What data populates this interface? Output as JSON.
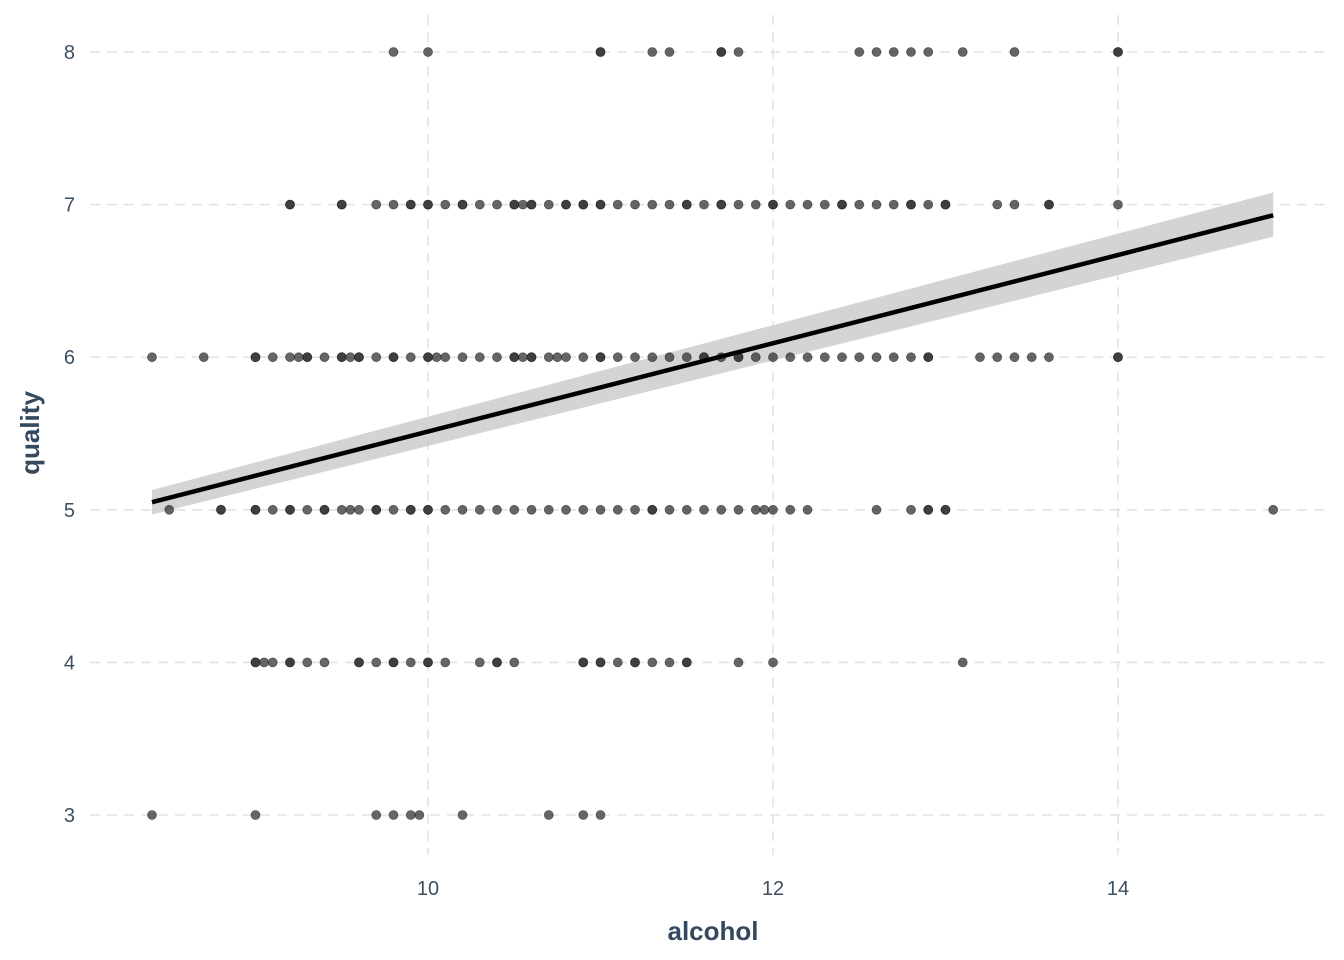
{
  "chart_data": {
    "type": "scatter",
    "title": "",
    "xlabel": "alcohol",
    "ylabel": "quality",
    "xlim": [
      8.2,
      15.3
    ],
    "ylim": [
      2.7,
      8.3
    ],
    "xticks": [
      10,
      12,
      14
    ],
    "yticks": [
      3,
      4,
      5,
      6,
      7,
      8
    ],
    "xtick_labels": [
      "10",
      "12",
      "14"
    ],
    "ytick_labels": [
      "3",
      "4",
      "5",
      "6",
      "7",
      "8"
    ],
    "grid": true,
    "legend": "none",
    "colors": {
      "points": "#333333",
      "trend_line": "#000000",
      "confidence_band": "#cccccc"
    },
    "series": [
      {
        "type": "scatter",
        "points": [
          [
            9.8,
            8
          ],
          [
            10.0,
            8
          ],
          [
            11.0,
            8
          ],
          [
            11.0,
            8
          ],
          [
            11.3,
            8
          ],
          [
            11.4,
            8
          ],
          [
            11.7,
            8
          ],
          [
            11.7,
            8
          ],
          [
            11.8,
            8
          ],
          [
            12.5,
            8
          ],
          [
            12.6,
            8
          ],
          [
            12.7,
            8
          ],
          [
            12.8,
            8
          ],
          [
            12.9,
            8
          ],
          [
            13.1,
            8
          ],
          [
            13.4,
            8
          ],
          [
            14.0,
            8
          ],
          [
            14.0,
            8
          ],
          [
            9.2,
            7
          ],
          [
            9.2,
            7
          ],
          [
            9.5,
            7
          ],
          [
            9.5,
            7
          ],
          [
            9.7,
            7
          ],
          [
            9.8,
            7
          ],
          [
            9.9,
            7
          ],
          [
            9.9,
            7
          ],
          [
            10.0,
            7
          ],
          [
            10.0,
            7
          ],
          [
            10.1,
            7
          ],
          [
            10.2,
            7
          ],
          [
            10.2,
            7
          ],
          [
            10.3,
            7
          ],
          [
            10.4,
            7
          ],
          [
            10.5,
            7
          ],
          [
            10.5,
            7
          ],
          [
            10.55,
            7
          ],
          [
            10.6,
            7
          ],
          [
            10.6,
            7
          ],
          [
            10.7,
            7
          ],
          [
            10.8,
            7
          ],
          [
            10.8,
            7
          ],
          [
            10.9,
            7
          ],
          [
            10.9,
            7
          ],
          [
            11.0,
            7
          ],
          [
            11.0,
            7
          ],
          [
            11.1,
            7
          ],
          [
            11.2,
            7
          ],
          [
            11.3,
            7
          ],
          [
            11.4,
            7
          ],
          [
            11.5,
            7
          ],
          [
            11.5,
            7
          ],
          [
            11.6,
            7
          ],
          [
            11.7,
            7
          ],
          [
            11.7,
            7
          ],
          [
            11.8,
            7
          ],
          [
            11.9,
            7
          ],
          [
            12.0,
            7
          ],
          [
            12.0,
            7
          ],
          [
            12.1,
            7
          ],
          [
            12.2,
            7
          ],
          [
            12.3,
            7
          ],
          [
            12.4,
            7
          ],
          [
            12.4,
            7
          ],
          [
            12.5,
            7
          ],
          [
            12.6,
            7
          ],
          [
            12.7,
            7
          ],
          [
            12.8,
            7
          ],
          [
            12.8,
            7
          ],
          [
            12.9,
            7
          ],
          [
            13.0,
            7
          ],
          [
            13.0,
            7
          ],
          [
            13.3,
            7
          ],
          [
            13.4,
            7
          ],
          [
            13.6,
            7
          ],
          [
            13.6,
            7
          ],
          [
            14.0,
            7
          ],
          [
            8.4,
            6
          ],
          [
            8.7,
            6
          ],
          [
            9.0,
            6
          ],
          [
            9.0,
            6
          ],
          [
            9.1,
            6
          ],
          [
            9.2,
            6
          ],
          [
            9.25,
            6
          ],
          [
            9.3,
            6
          ],
          [
            9.3,
            6
          ],
          [
            9.4,
            6
          ],
          [
            9.5,
            6
          ],
          [
            9.5,
            6
          ],
          [
            9.55,
            6
          ],
          [
            9.6,
            6
          ],
          [
            9.6,
            6
          ],
          [
            9.7,
            6
          ],
          [
            9.8,
            6
          ],
          [
            9.8,
            6
          ],
          [
            9.9,
            6
          ],
          [
            10.0,
            6
          ],
          [
            10.0,
            6
          ],
          [
            10.05,
            6
          ],
          [
            10.1,
            6
          ],
          [
            10.2,
            6
          ],
          [
            10.3,
            6
          ],
          [
            10.4,
            6
          ],
          [
            10.5,
            6
          ],
          [
            10.5,
            6
          ],
          [
            10.55,
            6
          ],
          [
            10.6,
            6
          ],
          [
            10.6,
            6
          ],
          [
            10.7,
            6
          ],
          [
            10.75,
            6
          ],
          [
            10.8,
            6
          ],
          [
            10.9,
            6
          ],
          [
            11.0,
            6
          ],
          [
            11.0,
            6
          ],
          [
            11.1,
            6
          ],
          [
            11.2,
            6
          ],
          [
            11.3,
            6
          ],
          [
            11.4,
            6
          ],
          [
            11.5,
            6
          ],
          [
            11.6,
            6
          ],
          [
            11.6,
            6
          ],
          [
            11.7,
            6
          ],
          [
            11.8,
            6
          ],
          [
            11.8,
            6
          ],
          [
            11.9,
            6
          ],
          [
            12.0,
            6
          ],
          [
            12.1,
            6
          ],
          [
            12.2,
            6
          ],
          [
            12.3,
            6
          ],
          [
            12.4,
            6
          ],
          [
            12.5,
            6
          ],
          [
            12.6,
            6
          ],
          [
            12.7,
            6
          ],
          [
            12.8,
            6
          ],
          [
            12.9,
            6
          ],
          [
            12.9,
            6
          ],
          [
            13.2,
            6
          ],
          [
            13.3,
            6
          ],
          [
            13.4,
            6
          ],
          [
            13.5,
            6
          ],
          [
            13.6,
            6
          ],
          [
            14.0,
            6
          ],
          [
            14.0,
            6
          ],
          [
            8.5,
            5
          ],
          [
            8.8,
            5
          ],
          [
            8.8,
            5
          ],
          [
            9.0,
            5
          ],
          [
            9.0,
            5
          ],
          [
            9.1,
            5
          ],
          [
            9.2,
            5
          ],
          [
            9.2,
            5
          ],
          [
            9.3,
            5
          ],
          [
            9.4,
            5
          ],
          [
            9.4,
            5
          ],
          [
            9.5,
            5
          ],
          [
            9.55,
            5
          ],
          [
            9.6,
            5
          ],
          [
            9.7,
            5
          ],
          [
            9.7,
            5
          ],
          [
            9.8,
            5
          ],
          [
            9.9,
            5
          ],
          [
            9.9,
            5
          ],
          [
            10.0,
            5
          ],
          [
            10.0,
            5
          ],
          [
            10.1,
            5
          ],
          [
            10.2,
            5
          ],
          [
            10.3,
            5
          ],
          [
            10.4,
            5
          ],
          [
            10.5,
            5
          ],
          [
            10.6,
            5
          ],
          [
            10.7,
            5
          ],
          [
            10.8,
            5
          ],
          [
            10.9,
            5
          ],
          [
            11.0,
            5
          ],
          [
            11.1,
            5
          ],
          [
            11.2,
            5
          ],
          [
            11.3,
            5
          ],
          [
            11.3,
            5
          ],
          [
            11.4,
            5
          ],
          [
            11.5,
            5
          ],
          [
            11.6,
            5
          ],
          [
            11.7,
            5
          ],
          [
            11.8,
            5
          ],
          [
            11.9,
            5
          ],
          [
            11.95,
            5
          ],
          [
            12.0,
            5
          ],
          [
            12.1,
            5
          ],
          [
            12.2,
            5
          ],
          [
            12.6,
            5
          ],
          [
            12.8,
            5
          ],
          [
            12.9,
            5
          ],
          [
            12.9,
            5
          ],
          [
            13.0,
            5
          ],
          [
            13.0,
            5
          ],
          [
            14.9,
            5
          ],
          [
            9.0,
            4
          ],
          [
            9.0,
            4
          ],
          [
            9.05,
            4
          ],
          [
            9.1,
            4
          ],
          [
            9.2,
            4
          ],
          [
            9.2,
            4
          ],
          [
            9.3,
            4
          ],
          [
            9.4,
            4
          ],
          [
            9.6,
            4
          ],
          [
            9.6,
            4
          ],
          [
            9.7,
            4
          ],
          [
            9.8,
            4
          ],
          [
            9.8,
            4
          ],
          [
            9.9,
            4
          ],
          [
            10.0,
            4
          ],
          [
            10.0,
            4
          ],
          [
            10.1,
            4
          ],
          [
            10.3,
            4
          ],
          [
            10.4,
            4
          ],
          [
            10.4,
            4
          ],
          [
            10.5,
            4
          ],
          [
            10.9,
            4
          ],
          [
            10.9,
            4
          ],
          [
            11.0,
            4
          ],
          [
            11.0,
            4
          ],
          [
            11.1,
            4
          ],
          [
            11.2,
            4
          ],
          [
            11.2,
            4
          ],
          [
            11.3,
            4
          ],
          [
            11.4,
            4
          ],
          [
            11.5,
            4
          ],
          [
            11.5,
            4
          ],
          [
            11.8,
            4
          ],
          [
            12.0,
            4
          ],
          [
            13.1,
            4
          ],
          [
            8.4,
            3
          ],
          [
            9.0,
            3
          ],
          [
            9.7,
            3
          ],
          [
            9.8,
            3
          ],
          [
            9.9,
            3
          ],
          [
            9.95,
            3
          ],
          [
            10.2,
            3
          ],
          [
            10.7,
            3
          ],
          [
            10.9,
            3
          ],
          [
            11.0,
            3
          ]
        ]
      },
      {
        "type": "line",
        "fit": "linear",
        "x": [
          8.4,
          14.9
        ],
        "y": [
          5.05,
          6.93
        ],
        "ci_lower": [
          4.97,
          6.79
        ],
        "ci_upper": [
          5.13,
          7.08
        ]
      }
    ]
  }
}
